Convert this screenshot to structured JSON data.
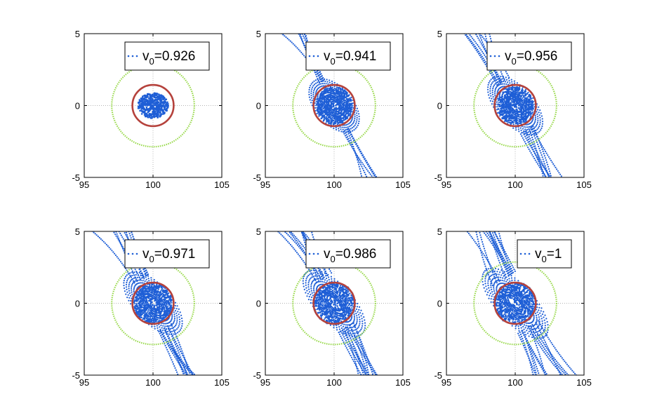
{
  "chart_data": [
    {
      "type": "scatter",
      "legend": {
        "prefix": "v",
        "subscript": "0",
        "value": "=0.926"
      },
      "title": "",
      "xlabel": "",
      "ylabel": "",
      "xlim": [
        95,
        105
      ],
      "ylim": [
        -5,
        5
      ],
      "xticks": [
        "95",
        "100",
        "105"
      ],
      "yticks": [
        "-5",
        "0",
        "5"
      ],
      "grid": "dotted",
      "series": [
        {
          "name": "outer circle",
          "type": "circle",
          "center": [
            100,
            0
          ],
          "radius": 3.0,
          "color": "#99d94c"
        },
        {
          "name": "inner circle",
          "type": "circle",
          "center": [
            100,
            0
          ],
          "radius": 1.5,
          "color": "#b5423c"
        },
        {
          "name": "trajectory",
          "type": "scatter",
          "color": "#1f5fd6",
          "spread": 0.0,
          "disk_radius": 1.1
        }
      ]
    },
    {
      "type": "scatter",
      "legend": {
        "prefix": "v",
        "subscript": "0",
        "value": "=0.941"
      },
      "title": "",
      "xlabel": "",
      "ylabel": "",
      "xlim": [
        95,
        105
      ],
      "ylim": [
        -5,
        5
      ],
      "xticks": [
        "95",
        "100",
        "105"
      ],
      "yticks": [
        "-5",
        "0",
        "5"
      ],
      "grid": "dotted",
      "series": [
        {
          "name": "outer circle",
          "type": "circle",
          "center": [
            100,
            0
          ],
          "radius": 3.0,
          "color": "#99d94c"
        },
        {
          "name": "inner circle",
          "type": "circle",
          "center": [
            100,
            0
          ],
          "radius": 1.5,
          "color": "#b5423c"
        },
        {
          "name": "trajectory",
          "type": "scatter",
          "color": "#1f5fd6",
          "spread": 0.35,
          "disk_radius": 1.3
        }
      ]
    },
    {
      "type": "scatter",
      "legend": {
        "prefix": "v",
        "subscript": "0",
        "value": "=0.956"
      },
      "title": "",
      "xlabel": "",
      "ylabel": "",
      "xlim": [
        95,
        105
      ],
      "ylim": [
        -5,
        5
      ],
      "xticks": [
        "95",
        "100",
        "105"
      ],
      "yticks": [
        "-5",
        "0",
        "5"
      ],
      "grid": "dotted",
      "series": [
        {
          "name": "outer circle",
          "type": "circle",
          "center": [
            100,
            0
          ],
          "radius": 3.0,
          "color": "#99d94c"
        },
        {
          "name": "inner circle",
          "type": "circle",
          "center": [
            100,
            0
          ],
          "radius": 1.5,
          "color": "#b5423c"
        },
        {
          "name": "trajectory",
          "type": "scatter",
          "color": "#1f5fd6",
          "spread": 0.55,
          "disk_radius": 1.3
        }
      ]
    },
    {
      "type": "scatter",
      "legend": {
        "prefix": "v",
        "subscript": "0",
        "value": "=0.971"
      },
      "title": "",
      "xlabel": "",
      "ylabel": "",
      "xlim": [
        95,
        105
      ],
      "ylim": [
        -5,
        5
      ],
      "xticks": [
        "95",
        "100",
        "105"
      ],
      "yticks": [
        "-5",
        "0",
        "5"
      ],
      "grid": "dotted",
      "series": [
        {
          "name": "outer circle",
          "type": "circle",
          "center": [
            100,
            0
          ],
          "radius": 3.0,
          "color": "#99d94c"
        },
        {
          "name": "inner circle",
          "type": "circle",
          "center": [
            100,
            0
          ],
          "radius": 1.5,
          "color": "#b5423c"
        },
        {
          "name": "trajectory",
          "type": "scatter",
          "color": "#1f5fd6",
          "spread": 0.7,
          "disk_radius": 1.4
        }
      ]
    },
    {
      "type": "scatter",
      "legend": {
        "prefix": "v",
        "subscript": "0",
        "value": "=0.986"
      },
      "title": "",
      "xlabel": "",
      "ylabel": "",
      "xlim": [
        95,
        105
      ],
      "ylim": [
        -5,
        5
      ],
      "xticks": [
        "95",
        "100",
        "105"
      ],
      "yticks": [
        "-5",
        "0",
        "5"
      ],
      "grid": "dotted",
      "series": [
        {
          "name": "outer circle",
          "type": "circle",
          "center": [
            100,
            0
          ],
          "radius": 3.0,
          "color": "#99d94c"
        },
        {
          "name": "inner circle",
          "type": "circle",
          "center": [
            100,
            0
          ],
          "radius": 1.5,
          "color": "#b5423c"
        },
        {
          "name": "trajectory",
          "type": "scatter",
          "color": "#1f5fd6",
          "spread": 0.85,
          "disk_radius": 1.5
        }
      ]
    },
    {
      "type": "scatter",
      "legend": {
        "prefix": "v",
        "subscript": "0",
        "value": "=1"
      },
      "title": "",
      "xlabel": "",
      "ylabel": "",
      "xlim": [
        95,
        105
      ],
      "ylim": [
        -5,
        5
      ],
      "xticks": [
        "95",
        "100",
        "105"
      ],
      "yticks": [
        "-5",
        "0",
        "5"
      ],
      "grid": "dotted",
      "series": [
        {
          "name": "outer circle",
          "type": "circle",
          "center": [
            100,
            0
          ],
          "radius": 3.0,
          "color": "#99d94c"
        },
        {
          "name": "inner circle",
          "type": "circle",
          "center": [
            100,
            0
          ],
          "radius": 1.5,
          "color": "#b5423c"
        },
        {
          "name": "trajectory",
          "type": "scatter",
          "color": "#1f5fd6",
          "spread": 1.0,
          "disk_radius": 1.5
        }
      ]
    }
  ]
}
